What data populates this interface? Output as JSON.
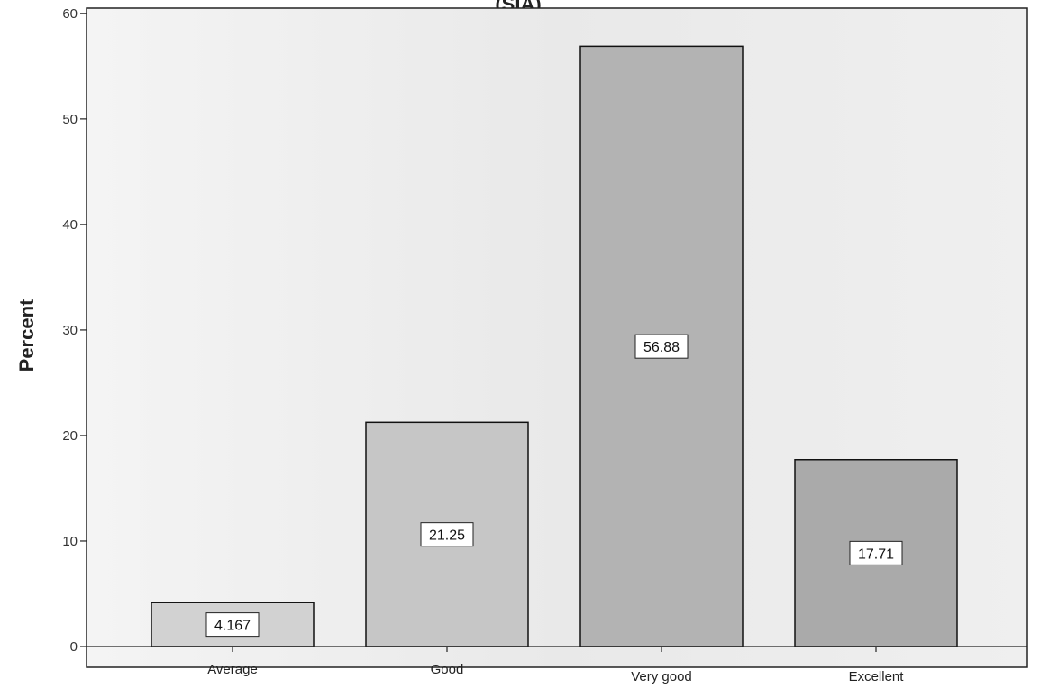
{
  "chart_data": {
    "type": "bar",
    "title": "(SIA)",
    "xlabel": "",
    "ylabel": "Percent",
    "categories": [
      "Average",
      "Good",
      "Very good",
      "Excellent"
    ],
    "values": [
      4.167,
      21.25,
      56.88,
      17.71
    ],
    "data_labels": [
      "4.167",
      "21.25",
      "56.88",
      "17.71"
    ],
    "ylim": [
      0,
      60.5
    ],
    "yticks": [
      0,
      10,
      20,
      30,
      40,
      50,
      60
    ],
    "grid": false,
    "legend": "none",
    "colors": {
      "plot_background": "#eeeeee",
      "bar_fill": [
        "#d2d2d2",
        "#c6c6c6",
        "#b3b3b3",
        "#aaaaaa"
      ],
      "bar_stroke": "#111111",
      "label_box": "#ffffff"
    }
  }
}
